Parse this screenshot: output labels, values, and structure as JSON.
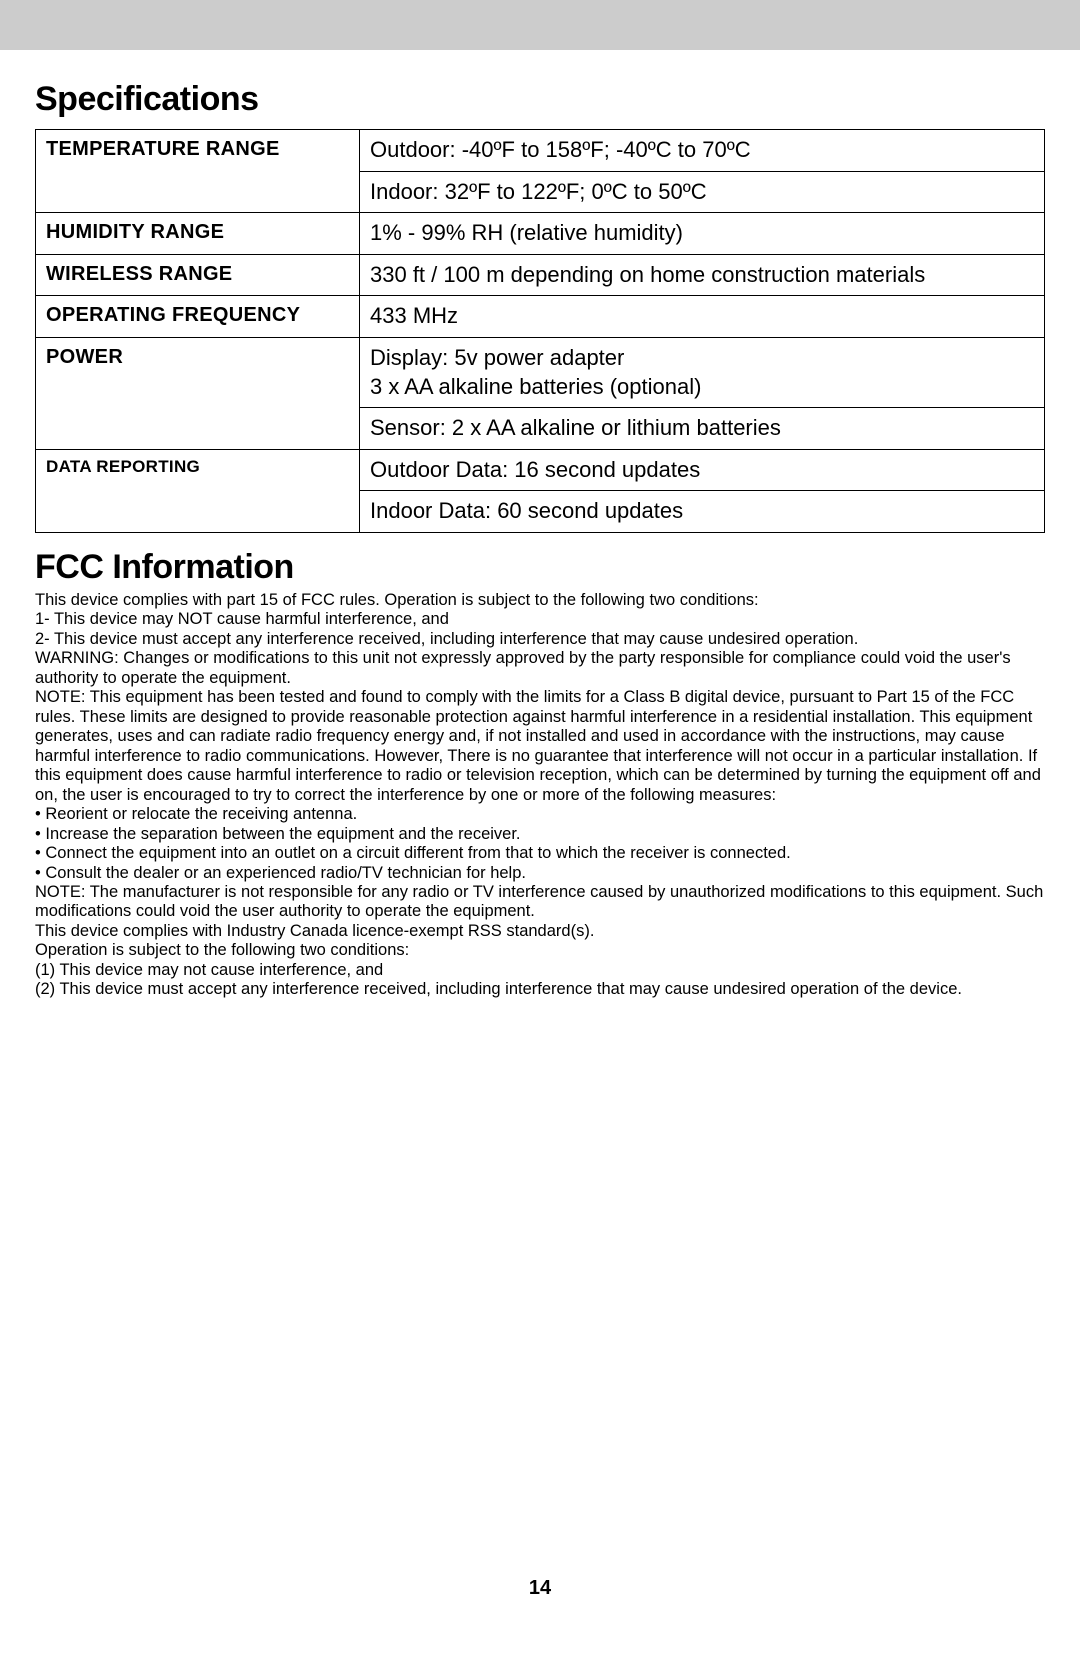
{
  "colors": {
    "gray_bar": "#cccccc",
    "text": "#000000",
    "background": "#ffffff",
    "table_border": "#000000"
  },
  "typography": {
    "heading_fontsize_pt": 26,
    "table_label_fontsize_pt": 15,
    "table_value_fontsize_pt": 17,
    "fcc_body_fontsize_pt": 12,
    "page_number_fontsize_pt": 15,
    "heading_weight": "800"
  },
  "headings": {
    "specifications": "Specifications",
    "fcc": "FCC Information"
  },
  "spec_table": {
    "rows": [
      {
        "label": "TEMPERATURE RANGE",
        "value": "Outdoor: -40ºF to 158ºF; -40ºC to 70ºC"
      },
      {
        "label": "",
        "value": "Indoor: 32ºF to 122ºF; 0ºC to 50ºC"
      },
      {
        "label": "HUMIDITY RANGE",
        "value": "1% - 99% RH (relative humidity)"
      },
      {
        "label": "WIRELESS RANGE",
        "value": "330 ft / 100 m depending on home construction materials"
      },
      {
        "label": "OPERATING FREQUENCY",
        "value": "433 MHz"
      },
      {
        "label": "POWER",
        "value": "Display: 5v power adapter\n3 x AA alkaline batteries (optional)"
      },
      {
        "label": "",
        "value": "Sensor: 2 x AA alkaline or lithium batteries"
      },
      {
        "label": "DATA REPORTING",
        "value": "Outdoor Data: 16 second updates",
        "small": true
      },
      {
        "label": "",
        "value": "Indoor Data: 60 second updates"
      }
    ]
  },
  "fcc_body": "This device complies with part 15 of FCC rules. Operation is subject to the following two conditions:\n1- This device may NOT cause harmful interference, and\n2- This device must accept any interference received, including interference that may cause undesired operation.\nWARNING: Changes or modifications to this unit not expressly approved by the party responsible for compliance could void the user's authority to operate the equipment.\nNOTE: This equipment has been tested and found to comply with the limits for a Class B digital device, pursuant to Part 15 of the FCC rules. These limits are designed to provide reasonable protection against harmful interference in a residential installation. This equipment generates, uses and can radiate radio frequency energy and, if not installed and used in accordance with the instructions, may cause harmful interference to radio communications. However, There is no guarantee that interference will not occur in a particular installation. If this equipment does cause harmful interference to radio or television reception, which can be determined by turning the equipment off and on, the user is encouraged to try to correct the interference by one or more of the following measures:\n • Reorient or relocate the receiving antenna.\n • Increase the separation between the equipment and the receiver.\n • Connect the equipment into an outlet on a circuit different from that to which the receiver is connected.\n • Consult the dealer or an experienced radio/TV technician for help.\nNOTE: The manufacturer is not responsible for any radio or TV interference caused by unauthorized modifications to this equipment. Such modifications could void the user authority to operate the equipment.\nThis device complies with Industry Canada licence-exempt RSS standard(s).\nOperation is subject to the following two conditions:\n(1) This device may not cause interference, and\n(2) This device must accept any interference received, including interference that may cause undesired operation of the device.",
  "page_number": "14"
}
